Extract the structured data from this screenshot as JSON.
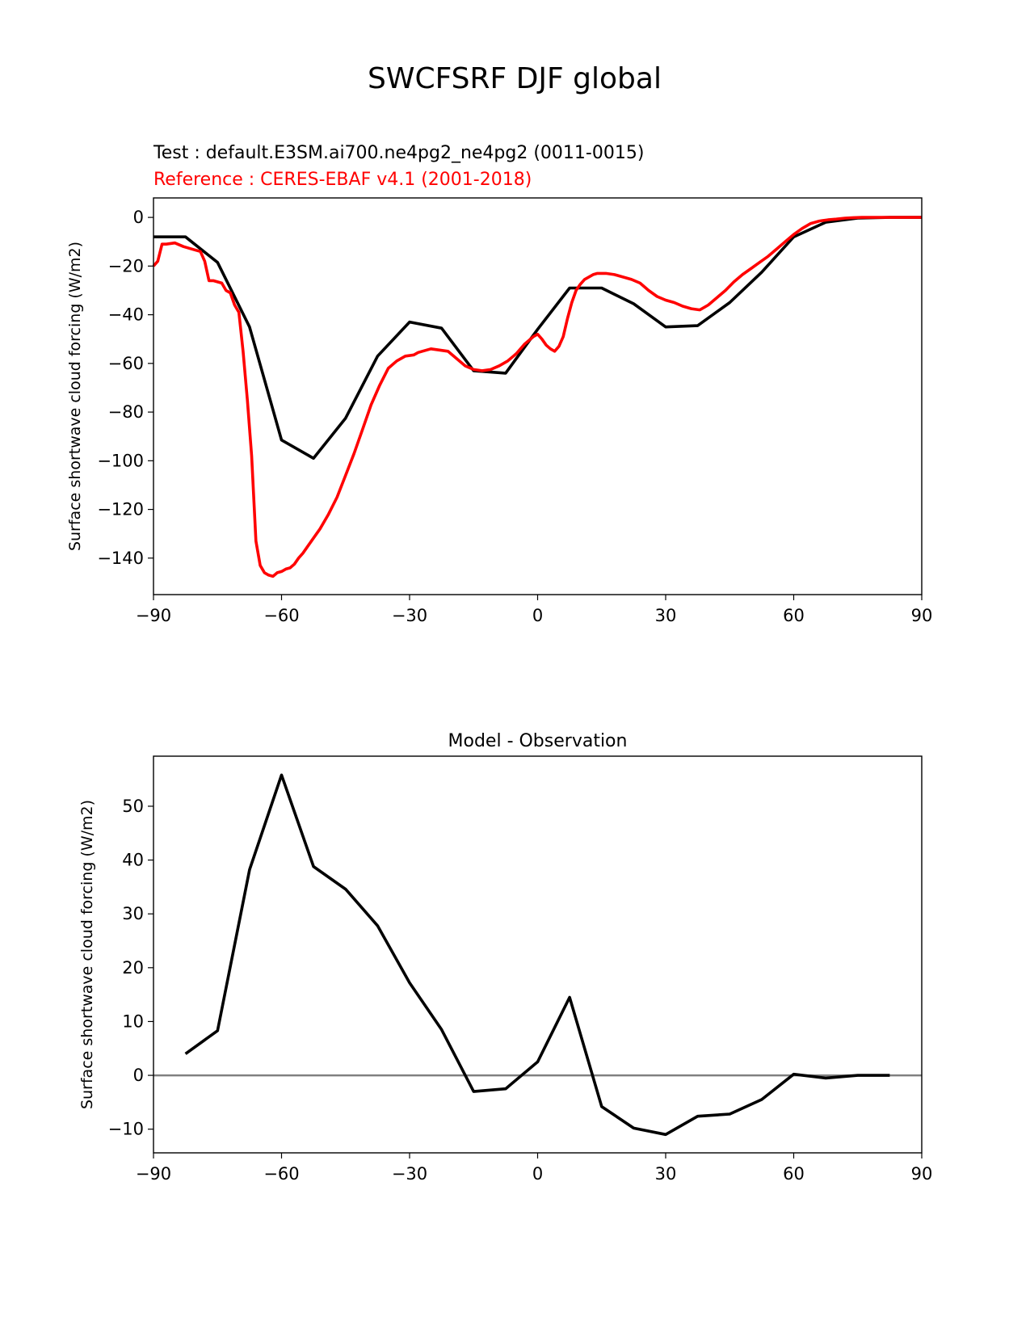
{
  "figure": {
    "title": "SWCFSRF DJF global",
    "test_label": "Test : default.E3SM.ai700.ne4pg2_ne4pg2 (0011-0015)",
    "reference_label": "Reference : CERES-EBAF v4.1 (2001-2018)",
    "test_color": "#000000",
    "reference_color": "#ff0000",
    "zero_line_color": "#808080"
  },
  "chart_data": [
    {
      "type": "line",
      "title": "",
      "xlabel": "",
      "ylabel": "Surface shortwave cloud forcing (W/m2)",
      "xlim": [
        -90,
        90
      ],
      "ylim": [
        -155,
        8
      ],
      "xticks": [
        -90,
        -60,
        -30,
        0,
        30,
        60,
        90
      ],
      "xtick_labels": [
        "−90",
        "−60",
        "−30",
        "0",
        "30",
        "60",
        "90"
      ],
      "yticks": [
        0,
        -20,
        -40,
        -60,
        -80,
        -100,
        -120,
        -140
      ],
      "ytick_labels": [
        "0",
        "−20",
        "−40",
        "−60",
        "−80",
        "−100",
        "−120",
        "−140"
      ],
      "series": [
        {
          "name": "Test : default.E3SM.ai700.ne4pg2_ne4pg2 (0011-0015)",
          "color": "#000000",
          "x": [
            -90,
            -82.5,
            -75,
            -67.5,
            -60,
            -52.5,
            -45,
            -37.5,
            -30,
            -22.5,
            -15,
            -7.5,
            0,
            7.5,
            15,
            22.5,
            30,
            37.5,
            45,
            52.5,
            60,
            67.5,
            75,
            82.5,
            90
          ],
          "y": [
            -8,
            -8,
            -18.5,
            -45,
            -91.5,
            -99,
            -82.5,
            -57,
            -43,
            -45.5,
            -63,
            -64,
            -46,
            -29,
            -29,
            -35.5,
            -45,
            -44.5,
            -35,
            -22.5,
            -8,
            -2,
            -0.3,
            0,
            0
          ]
        },
        {
          "name": "Reference : CERES-EBAF v4.1 (2001-2018)",
          "color": "#ff0000",
          "x": [
            -90,
            -89,
            -88,
            -87,
            -85,
            -83,
            -81,
            -79,
            -78,
            -77,
            -76,
            -74,
            -73,
            -72,
            -71,
            -70,
            -69,
            -68,
            -67,
            -66,
            -65,
            -64,
            -63,
            -62,
            -61,
            -60,
            -59,
            -58,
            -57,
            -56,
            -55,
            -53,
            -51,
            -49,
            -47,
            -45,
            -43,
            -41,
            -39,
            -37,
            -35,
            -33,
            -31,
            -29,
            -28,
            -27,
            -25,
            -23,
            -21,
            -19,
            -17,
            -15,
            -13,
            -11,
            -9,
            -7,
            -5,
            -3,
            -1,
            0,
            1,
            2,
            3,
            4,
            5,
            6,
            7,
            8,
            9,
            10,
            11,
            12,
            13,
            14,
            16,
            18,
            19,
            20,
            22,
            24,
            26,
            28,
            30,
            32,
            34,
            36,
            38,
            40,
            42,
            44,
            46,
            48,
            50,
            52,
            54,
            56,
            58,
            60,
            62,
            64,
            66,
            68,
            70,
            72,
            74,
            76,
            78,
            80,
            85,
            90
          ],
          "y": [
            -20,
            -18,
            -11,
            -11,
            -10.5,
            -12,
            -13,
            -14,
            -18,
            -26,
            -26,
            -27,
            -30,
            -31,
            -36,
            -39,
            -55,
            -75,
            -98,
            -133,
            -143,
            -146,
            -147,
            -147.5,
            -146,
            -145.5,
            -144.5,
            -144,
            -142.5,
            -140,
            -138,
            -133,
            -128,
            -122,
            -115,
            -106,
            -97,
            -87,
            -77,
            -69,
            -62,
            -59,
            -57,
            -56.5,
            -55.5,
            -55,
            -54,
            -54.5,
            -55,
            -58,
            -61,
            -62.5,
            -63,
            -62.5,
            -61,
            -59,
            -56,
            -52,
            -49,
            -48,
            -50,
            -52.5,
            -54,
            -55,
            -53,
            -49,
            -41.5,
            -35,
            -30,
            -27.5,
            -25.5,
            -24.5,
            -23.5,
            -23,
            -23,
            -23.5,
            -24,
            -24.5,
            -25.5,
            -27,
            -30,
            -32.5,
            -34,
            -35,
            -36.5,
            -37.5,
            -38,
            -36,
            -33,
            -30,
            -26.5,
            -23.5,
            -21,
            -18.5,
            -16,
            -13,
            -10,
            -7,
            -4.5,
            -2.5,
            -1.5,
            -1,
            -0.7,
            -0.3,
            -0.1,
            0,
            0,
            0,
            0,
            0
          ]
        }
      ]
    },
    {
      "type": "line",
      "title": "Model - Observation",
      "xlabel": "",
      "ylabel": "Surface shortwave cloud forcing (W/m2)",
      "xlim": [
        -90,
        90
      ],
      "ylim": [
        -14.4,
        59.3
      ],
      "xticks": [
        -90,
        -60,
        -30,
        0,
        30,
        60,
        90
      ],
      "xtick_labels": [
        "−90",
        "−60",
        "−30",
        "0",
        "30",
        "60",
        "90"
      ],
      "yticks": [
        50,
        40,
        30,
        20,
        10,
        0,
        -10
      ],
      "ytick_labels": [
        "50",
        "40",
        "30",
        "20",
        "10",
        "0",
        "−10"
      ],
      "zero_line": 0,
      "series": [
        {
          "name": "",
          "color": "#000000",
          "x": [
            -82.5,
            -75,
            -67.5,
            -60,
            -52.5,
            -45,
            -37.5,
            -30,
            -22.5,
            -15,
            -7.5,
            0,
            7.5,
            15,
            22.5,
            30,
            37.5,
            45,
            52.5,
            60,
            67.5,
            75,
            82.5
          ],
          "y": [
            4,
            8.3,
            38.2,
            55.8,
            38.8,
            34.6,
            27.8,
            17.2,
            8.5,
            -3,
            -2.5,
            2.5,
            14.5,
            -5.8,
            -9.8,
            -11,
            -7.6,
            -7.2,
            -4.5,
            0.2,
            -0.5,
            0,
            0
          ]
        }
      ]
    }
  ]
}
